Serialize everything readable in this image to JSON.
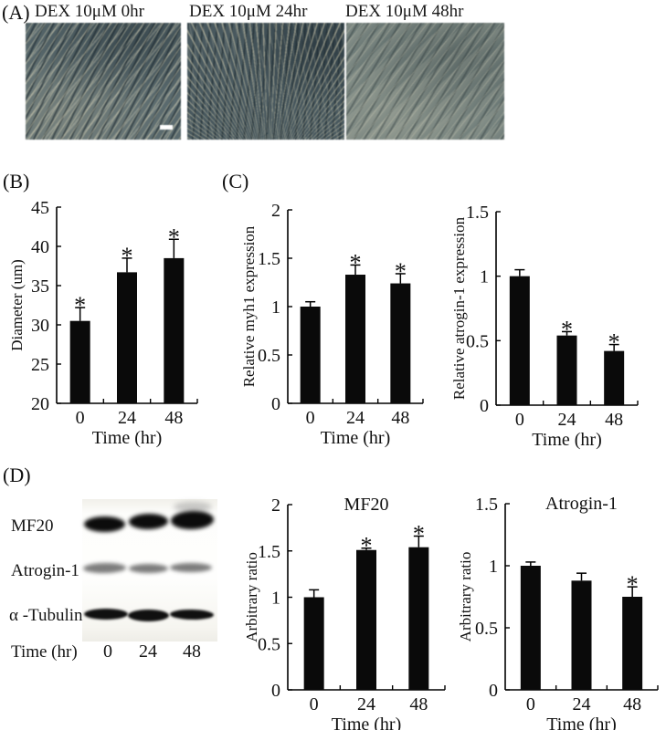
{
  "figure": {
    "panel_a": {
      "label": "(A)",
      "micrographs": [
        {
          "title": "DEX 10μM 0hr"
        },
        {
          "title": "DEX 10μM 24hr"
        },
        {
          "title": "DEX 10μM 48hr"
        }
      ]
    },
    "panel_b": {
      "label": "(B)"
    },
    "panel_c": {
      "label": "(C)"
    },
    "panel_d": {
      "label": "(D)",
      "blot": {
        "row_labels": [
          "MF20",
          "Atrogin-1",
          "α -Tubulin"
        ],
        "lane_axis_label": "Time (hr)",
        "lane_labels": [
          "0",
          "24",
          "48"
        ]
      }
    },
    "colors": {
      "bar": "#0a0a0a",
      "axis": "#000000",
      "text": "#111111"
    }
  },
  "chart_data": [
    {
      "id": "diameter",
      "panel": "B",
      "type": "bar",
      "title": "",
      "xlabel": "Time (hr)",
      "ylabel": "Diameter (um)",
      "categories": [
        "0",
        "24",
        "48"
      ],
      "values": [
        30.5,
        36.7,
        38.5
      ],
      "errors": [
        1.7,
        1.8,
        2.4
      ],
      "significance": [
        "*",
        "*",
        "*"
      ],
      "ylim": [
        20,
        45
      ],
      "yticks": [
        20,
        25,
        30,
        35,
        40,
        45
      ],
      "grid": false,
      "legend": "none"
    },
    {
      "id": "myh1",
      "panel": "C",
      "type": "bar",
      "title": "",
      "xlabel": "Time (hr)",
      "ylabel": "Relative myh1 expression",
      "categories": [
        "0",
        "24",
        "48"
      ],
      "values": [
        1.0,
        1.33,
        1.24
      ],
      "errors": [
        0.05,
        0.1,
        0.1
      ],
      "significance": [
        "",
        "*",
        "*"
      ],
      "ylim": [
        0,
        2
      ],
      "yticks": [
        0,
        0.5,
        1,
        1.5,
        2
      ],
      "grid": false,
      "legend": "none"
    },
    {
      "id": "atrogin1_mrna",
      "panel": "C",
      "type": "bar",
      "title": "",
      "xlabel": "Time (hr)",
      "ylabel": "Relative atrogin-1 expression",
      "categories": [
        "0",
        "24",
        "48"
      ],
      "values": [
        1.0,
        0.54,
        0.42
      ],
      "errors": [
        0.05,
        0.03,
        0.05
      ],
      "significance": [
        "",
        "*",
        "*"
      ],
      "ylim": [
        0,
        1.5
      ],
      "yticks": [
        0,
        0.5,
        1,
        1.5
      ],
      "grid": false,
      "legend": "none"
    },
    {
      "id": "mf20_protein",
      "panel": "D",
      "type": "bar",
      "title": "MF20",
      "xlabel": "Time (hr)",
      "ylabel": "Arbitrary ratio",
      "categories": [
        "0",
        "24",
        "48"
      ],
      "values": [
        1.0,
        1.51,
        1.54
      ],
      "errors": [
        0.08,
        0.02,
        0.12
      ],
      "significance": [
        "",
        "*",
        "*"
      ],
      "ylim": [
        0,
        2
      ],
      "yticks": [
        0,
        0.5,
        1,
        1.5,
        2
      ],
      "grid": false,
      "legend": "none"
    },
    {
      "id": "atrogin1_protein",
      "panel": "D",
      "type": "bar",
      "title": "Atrogin-1",
      "xlabel": "Time (hr)",
      "ylabel": "Arbitrary ratio",
      "categories": [
        "0",
        "24",
        "48"
      ],
      "values": [
        1.0,
        0.88,
        0.75
      ],
      "errors": [
        0.03,
        0.06,
        0.08
      ],
      "significance": [
        "",
        "",
        "*"
      ],
      "ylim": [
        0,
        1.5
      ],
      "yticks": [
        0,
        0.5,
        1,
        1.5
      ],
      "grid": false,
      "legend": "none"
    }
  ]
}
